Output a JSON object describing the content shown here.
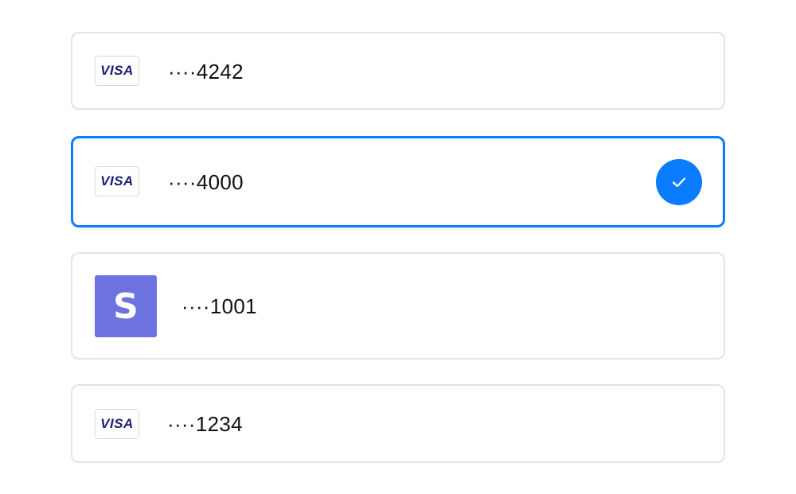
{
  "payment_methods": [
    {
      "brand": "VISA",
      "brand_icon": "visa-logo",
      "masked_number": "····4242",
      "selected": false
    },
    {
      "brand": "VISA",
      "brand_icon": "visa-logo",
      "masked_number": "····4000",
      "selected": true
    },
    {
      "brand": "S",
      "brand_icon": "stripe-logo",
      "masked_number": "····1001",
      "selected": false
    },
    {
      "brand": "VISA",
      "brand_icon": "visa-logo",
      "masked_number": "····1234",
      "selected": false
    }
  ],
  "colors": {
    "accent": "#0a7cff",
    "card_border": "#e3e3e6",
    "visa_text": "#1a1f71",
    "stripe_brand": "#6c72e0"
  },
  "icons": {
    "selected": "checkmark-icon"
  }
}
